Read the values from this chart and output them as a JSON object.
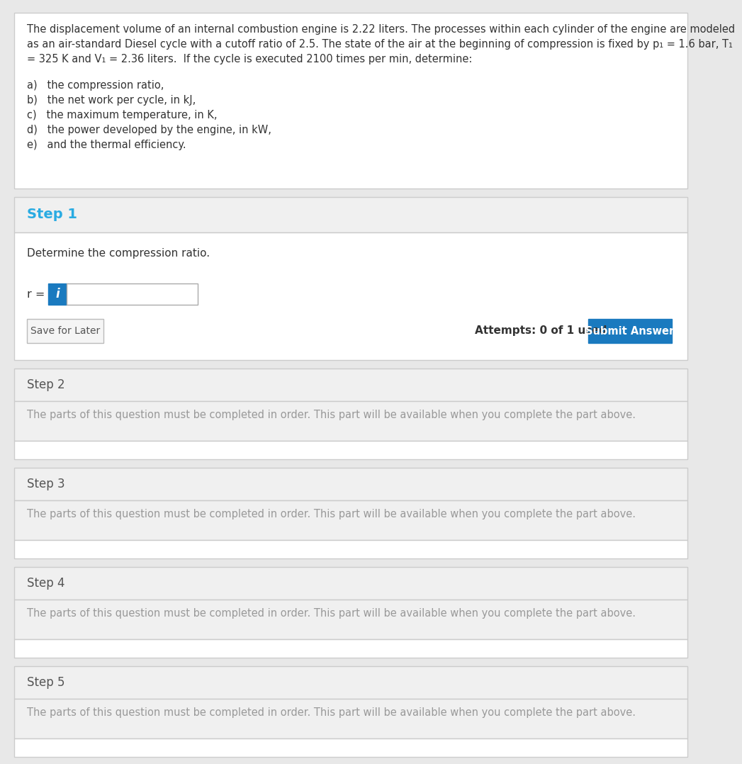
{
  "problem_text_lines": [
    "The displacement volume of an internal combustion engine is 2.22 liters. The processes within each cylinder of the engine are modeled",
    "as an air-standard Diesel cycle with a cutoff ratio of 2.5. The state of the air at the beginning of compression is fixed by p₁ = 1.6 bar, T₁",
    "= 325 K and V₁ = 2.36 liters.  If the cycle is executed 2100 times per min, determine:"
  ],
  "problem_list": [
    "a)   the compression ratio,",
    "b)   the net work per cycle, in kJ,",
    "c)   the maximum temperature, in K,",
    "d)   the power developed by the engine, in kW,",
    "e)   and the thermal efficiency."
  ],
  "step1_label": "Step 1",
  "step1_instruction": "Determine the compression ratio.",
  "step1_field_label": "r =",
  "step1_info_btn_color": "#1a7abf",
  "step1_submit_btn_color": "#1a7abf",
  "step1_submit_btn_text": "Submit Answer",
  "step1_save_btn_text": "Save for Later",
  "step1_attempts_text": "Attempts: 0 of 1 used",
  "steps_locked": [
    "Step 2",
    "Step 3",
    "Step 4",
    "Step 5"
  ],
  "locked_message": "The parts of this question must be completed in order. This part will be available when you complete the part above.",
  "bg_white": "#ffffff",
  "bg_light_gray": "#f0f0f0",
  "bg_page": "#e8e8e8",
  "border_color": "#cccccc",
  "step1_header_color": "#29abe2",
  "locked_step_header_color": "#555555",
  "locked_step_text_color": "#999999",
  "problem_text_color": "#333333",
  "save_btn_text_color": "#555555",
  "attempts_text_color": "#333333"
}
